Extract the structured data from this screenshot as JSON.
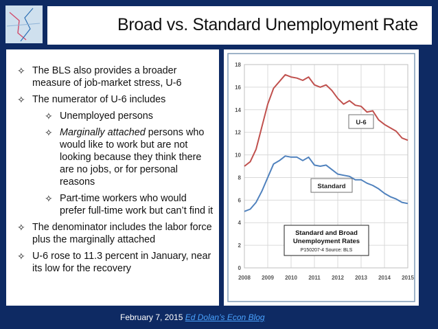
{
  "title": "Broad vs. Standard Unemployment Rate",
  "bullets": [
    {
      "text": "The BLS also provides a broader measure of job-market stress, U-6"
    },
    {
      "text": "The numerator of U-6 includes",
      "sub": [
        {
          "italic": "",
          "text": "Unemployed persons"
        },
        {
          "italic": "Marginally attached",
          "text": " persons who would like to work but are not looking because they think there are no jobs, or for personal reasons"
        },
        {
          "italic": "",
          "text": "Part-time workers who would prefer full-time work but can’t find it"
        }
      ]
    },
    {
      "text": "The denominator includes the labor force plus the marginally attached"
    },
    {
      "text": "U-6 rose to 11.3 percent in January, near its low for the recovery"
    }
  ],
  "bullet_glyph": "✧",
  "footer": {
    "date": "February 7, 2015",
    "link": "Ed Dolan’s Econ Blog"
  },
  "chart_data": {
    "type": "line",
    "title": "Standard and Broad Unemployment Rates",
    "subtitle": "P150207-4 Source: BLS",
    "xlim": [
      2008,
      2015
    ],
    "ylim": [
      0,
      18
    ],
    "xticks": [
      2008,
      2009,
      2010,
      2011,
      2012,
      2013,
      2014,
      2015
    ],
    "yticks": [
      0,
      2,
      4,
      6,
      8,
      10,
      12,
      14,
      16,
      18
    ],
    "grid": true,
    "series": [
      {
        "name": "U-6",
        "color": "#c0504d",
        "x": [
          2008.0,
          2008.25,
          2008.5,
          2008.75,
          2009.0,
          2009.25,
          2009.5,
          2009.75,
          2010.0,
          2010.25,
          2010.5,
          2010.75,
          2011.0,
          2011.25,
          2011.5,
          2011.75,
          2012.0,
          2012.25,
          2012.5,
          2012.75,
          2013.0,
          2013.25,
          2013.5,
          2013.75,
          2014.0,
          2014.25,
          2014.5,
          2014.75,
          2015.0
        ],
        "y": [
          9.0,
          9.4,
          10.5,
          12.5,
          14.5,
          15.9,
          16.5,
          17.1,
          16.9,
          16.8,
          16.6,
          16.9,
          16.2,
          16.0,
          16.2,
          15.7,
          15.0,
          14.5,
          14.8,
          14.4,
          14.3,
          13.8,
          13.9,
          13.1,
          12.7,
          12.4,
          12.1,
          11.5,
          11.3
        ]
      },
      {
        "name": "Standard",
        "color": "#4f81bd",
        "x": [
          2008.0,
          2008.25,
          2008.5,
          2008.75,
          2009.0,
          2009.25,
          2009.5,
          2009.75,
          2010.0,
          2010.25,
          2010.5,
          2010.75,
          2011.0,
          2011.25,
          2011.5,
          2011.75,
          2012.0,
          2012.25,
          2012.5,
          2012.75,
          2013.0,
          2013.25,
          2013.5,
          2013.75,
          2014.0,
          2014.25,
          2014.5,
          2014.75,
          2015.0
        ],
        "y": [
          5.0,
          5.2,
          5.8,
          6.8,
          8.0,
          9.2,
          9.5,
          9.9,
          9.8,
          9.8,
          9.5,
          9.8,
          9.1,
          9.0,
          9.1,
          8.7,
          8.3,
          8.2,
          8.1,
          7.8,
          7.8,
          7.5,
          7.3,
          7.0,
          6.6,
          6.3,
          6.1,
          5.8,
          5.7
        ]
      }
    ],
    "labels": {
      "u6": "U-6",
      "standard": "Standard"
    }
  }
}
